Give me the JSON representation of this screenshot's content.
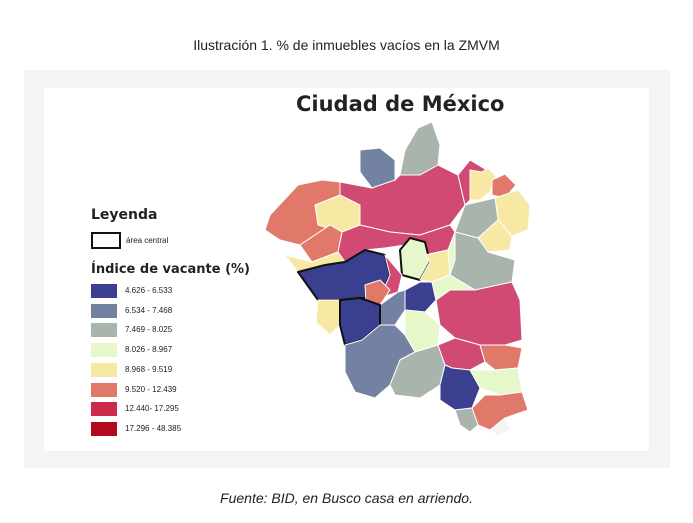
{
  "caption": "Ilustración 1. % de inmuebles vacíos en la ZMVM",
  "map_title": "Ciudad de México",
  "legend": {
    "title": "Leyenda",
    "central_label": "área central",
    "index_title": "Índice de vacante (%)",
    "items": [
      {
        "label": "4.626 - 6.533",
        "color": "#3a3f8f"
      },
      {
        "label": "6.534 - 7.468",
        "color": "#7382a3"
      },
      {
        "label": "7.469 - 8.025",
        "color": "#a9b4ac"
      },
      {
        "label": "8.026 - 8.967",
        "color": "#e6f7c9"
      },
      {
        "label": "8.968 - 9.519",
        "color": "#f7e9a3"
      },
      {
        "label": "9.520 - 12.439",
        "color": "#e0796a"
      },
      {
        "label": "12.440- 17.295",
        "color": "#cc2a4a"
      },
      {
        "label": "17.296 - 48.385",
        "color": "#b10a1f"
      }
    ]
  },
  "footer": "Fuente: BID, en Busco casa en arriendo."
}
